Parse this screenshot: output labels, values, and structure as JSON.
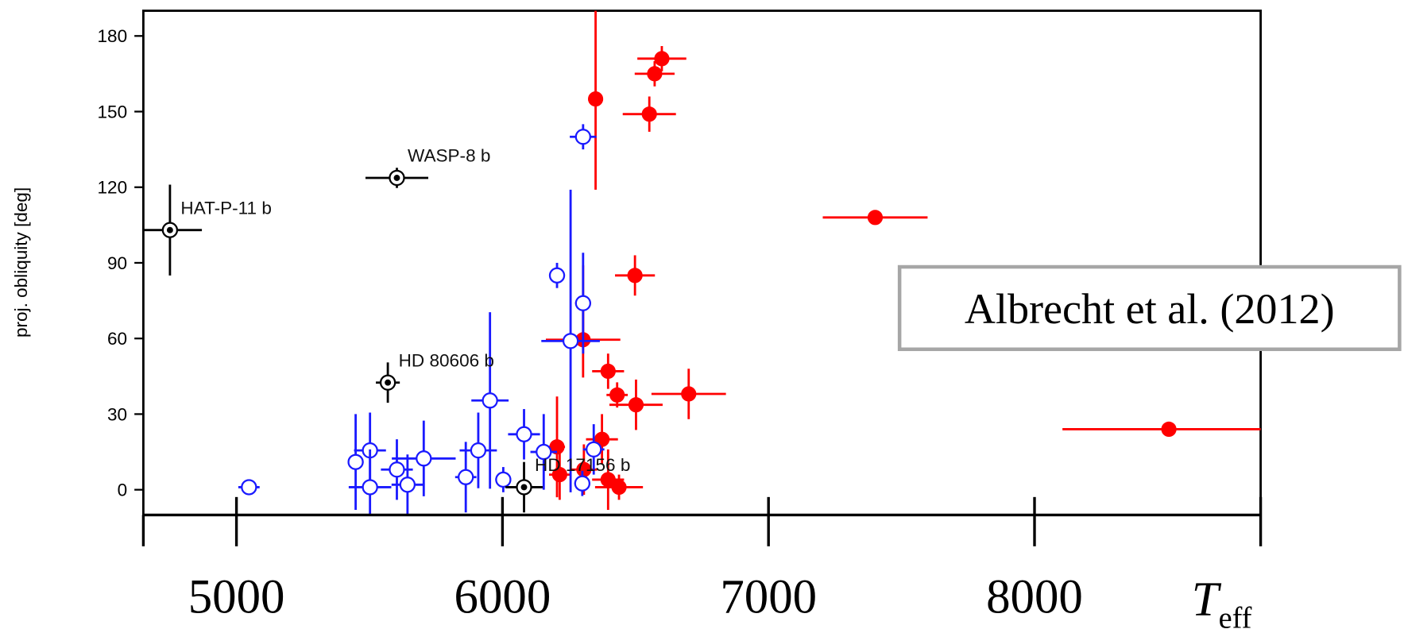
{
  "chart_data": {
    "type": "scatter",
    "ylabel": "proj. obliquity [deg]",
    "xlabel": {
      "main": "T",
      "sub": "eff"
    },
    "citation": "Albrecht et al. (2012)",
    "xlim": [
      4650,
      8850
    ],
    "ylim": [
      -10,
      190
    ],
    "xticks": [
      5000,
      6000,
      7000,
      8000
    ],
    "yticks": [
      0,
      30,
      60,
      90,
      120,
      150,
      180
    ],
    "grid": false,
    "series": [
      {
        "color": "#ff0000",
        "marker": "filled",
        "x": [
          6350,
          6599,
          6572,
          6552,
          7401,
          6498,
          6303,
          6303,
          6397,
          6431,
          6502,
          6700,
          8505,
          6374,
          6205,
          6306,
          6397,
          6438,
          6215
        ],
        "values": [
          155,
          171,
          165,
          149,
          108,
          85,
          74,
          59.5,
          47,
          37.6,
          33.7,
          38,
          24,
          20,
          17,
          8,
          4,
          1,
          6
        ],
        "xerr": [
          15,
          92,
          75,
          100,
          197,
          75,
          30,
          140,
          60,
          40,
          100,
          140,
          400,
          60,
          30,
          50,
          60,
          90,
          40
        ],
        "yerr": [
          36,
          5,
          5,
          7,
          2,
          8,
          15,
          15,
          7,
          5,
          10,
          10,
          3,
          10,
          20,
          10,
          12,
          5,
          10
        ]
      },
      {
        "color": "#1a1aff",
        "marker": "open",
        "x": [
          5047,
          5448,
          5502,
          5502,
          5603,
          5643,
          5704,
          5862,
          5909,
          5953,
          6003,
          6081,
          6155,
          6256,
          6303,
          6205,
          6303,
          6343,
          6300
        ],
        "values": [
          1,
          11,
          15.6,
          1,
          8,
          2,
          12.4,
          5,
          15.6,
          35.4,
          4,
          22,
          15,
          59,
          140,
          85,
          74,
          16,
          2.5
        ],
        "xerr": [
          40,
          30,
          60,
          80,
          60,
          60,
          120,
          40,
          70,
          70,
          30,
          60,
          50,
          110,
          50,
          30,
          10,
          40,
          30
        ],
        "yerr": [
          2,
          19,
          15,
          15,
          12,
          12,
          15,
          14,
          15,
          35,
          5,
          10,
          15,
          60,
          5,
          5,
          20,
          10,
          5
        ]
      },
      {
        "color": "#000000",
        "marker": "target",
        "x": [
          4750,
          5603,
          5569,
          6081
        ],
        "values": [
          103,
          123.7,
          42.5,
          1
        ],
        "xerr": [
          120,
          118,
          45,
          70
        ],
        "yerr": [
          18,
          4,
          8,
          10
        ],
        "point_labels": [
          "HAT-P-11 b",
          "WASP-8 b",
          "HD 80606 b",
          "HD 17156 b"
        ]
      }
    ]
  }
}
